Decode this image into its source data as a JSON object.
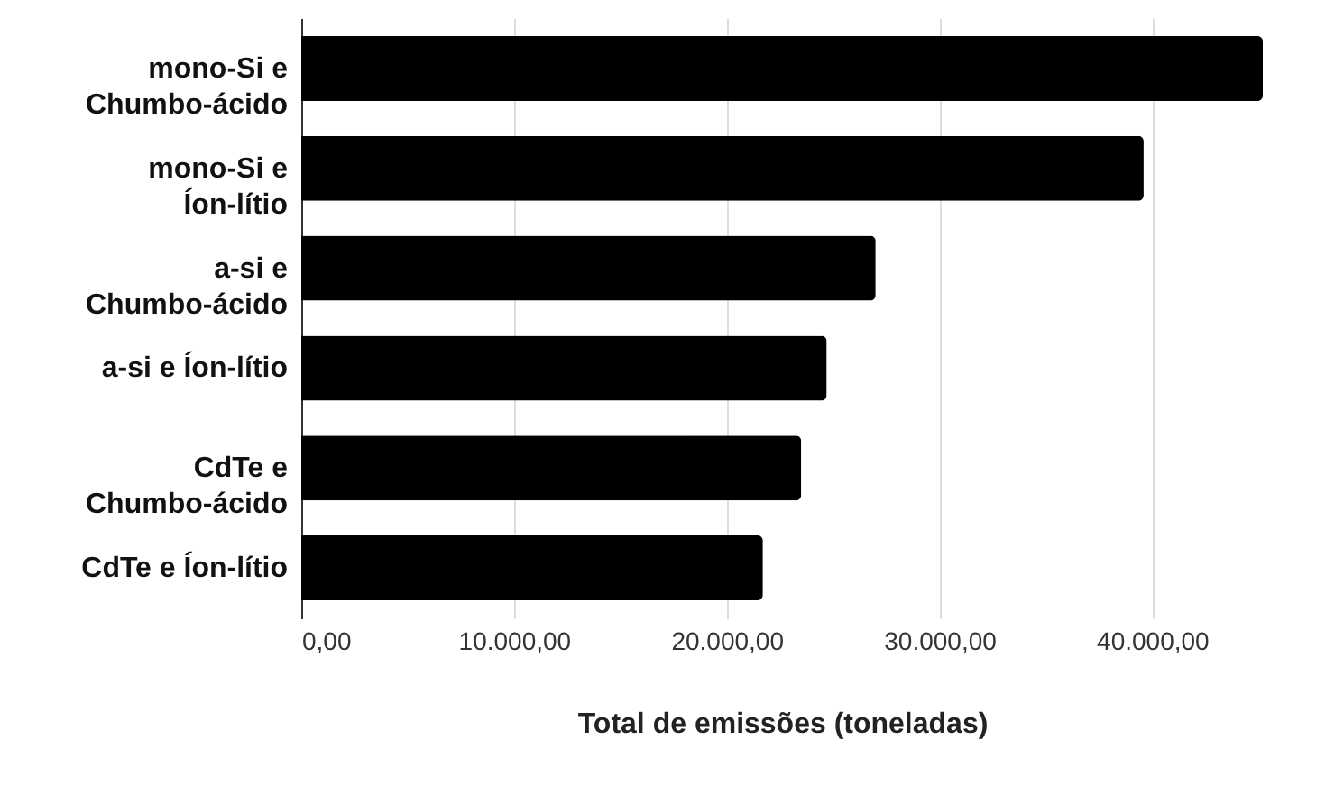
{
  "chart_data": {
    "type": "bar",
    "orientation": "horizontal",
    "xlabel": "Total de emissões (toneladas)",
    "categories": [
      "mono-Si e Chumbo-ácido",
      "mono-Si e Íon-lítio",
      "a-si e Chumbo-ácido",
      "a-si e Íon-lítio",
      "CdTe e Chumbo-ácido",
      "CdTe e Íon-lítio"
    ],
    "values": [
      45200,
      39600,
      27000,
      24700,
      23500,
      21700
    ],
    "color": "#000000",
    "xlim": [
      0,
      45200
    ],
    "xticks": [
      {
        "value": 0,
        "label": "0,00"
      },
      {
        "value": 10000,
        "label": "10.000,00"
      },
      {
        "value": 20000,
        "label": "20.000,00"
      },
      {
        "value": 30000,
        "label": "30.000,00"
      },
      {
        "value": 40000,
        "label": "40.000,00"
      }
    ],
    "grid": "x"
  }
}
